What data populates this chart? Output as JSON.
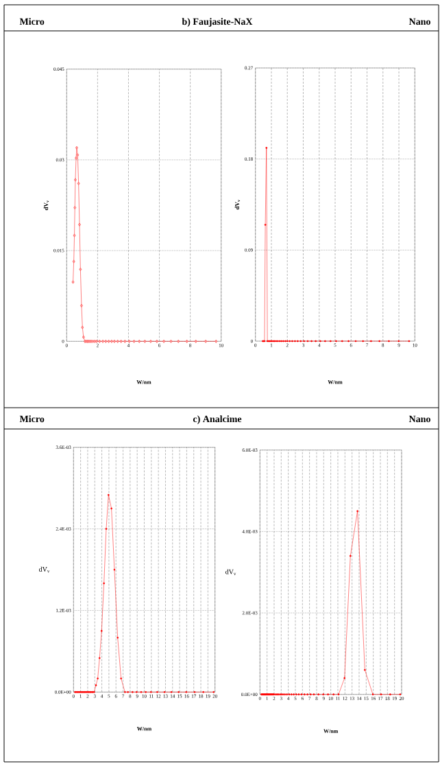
{
  "chart_data": [
    {
      "type": "line",
      "title": "Micro",
      "subtitle": "b) Faujasite-NaX",
      "xlabel": "W/nm",
      "ylabel": "dV$_{v}$",
      "color": "#ff0000",
      "marker": "diamond",
      "line_style": "solid",
      "grid": true,
      "xlim": [
        0,
        10
      ],
      "xticks": [
        0,
        2,
        4,
        6,
        8,
        10
      ],
      "ylim": [
        0,
        0.045
      ],
      "yticks": [
        0,
        0.015,
        0.03,
        0.045
      ],
      "x": [
        0.41,
        0.46,
        0.5,
        0.53,
        0.56,
        0.61,
        0.65,
        0.71,
        0.77,
        0.83,
        0.89,
        0.96,
        1.02,
        1.09,
        1.18,
        1.26,
        1.34,
        1.41,
        1.5,
        1.59,
        1.7,
        1.82,
        1.94,
        2.13,
        2.34,
        2.53,
        2.72,
        2.91,
        3.09,
        3.3,
        3.52,
        3.77,
        4.05,
        4.36,
        4.7,
        5.06,
        5.44,
        5.84,
        6.29,
        6.75,
        7.23,
        7.78,
        8.36,
        9.0,
        9.67
      ],
      "values": [
        0.0098,
        0.0132,
        0.0175,
        0.0221,
        0.0267,
        0.0303,
        0.032,
        0.0308,
        0.0261,
        0.0193,
        0.0119,
        0.0059,
        0.0023,
        0.0007,
        0,
        0,
        0,
        0,
        0,
        0,
        0,
        0,
        0,
        0,
        0,
        0,
        0,
        0,
        0,
        0,
        0,
        0,
        0,
        0,
        0,
        0,
        0,
        0,
        0,
        0,
        0,
        0,
        0,
        0,
        0
      ]
    },
    {
      "type": "line",
      "title": "Nano",
      "xlabel": "W/nm",
      "ylabel": "dV$_{v}$",
      "color": "#ff0000",
      "marker": "circle",
      "line_style": "solid",
      "grid": true,
      "xlim": [
        0,
        10
      ],
      "xticks": [
        0,
        1,
        2,
        3,
        4,
        5,
        6,
        7,
        8,
        9,
        10
      ],
      "ylim": [
        0,
        0.27
      ],
      "yticks": [
        0,
        0.09,
        0.18,
        0.27
      ],
      "x": [
        0.46,
        0.52,
        0.57,
        0.62,
        0.69,
        0.75,
        0.82,
        0.89,
        0.96,
        1.03,
        1.12,
        1.2,
        1.3,
        1.4,
        1.52,
        1.63,
        1.75,
        1.88,
        2.0,
        2.15,
        2.31,
        2.48,
        2.65,
        2.84,
        3.05,
        3.28,
        3.52,
        3.78,
        4.07,
        4.37,
        4.71,
        5.06,
        5.44,
        5.84,
        6.29,
        6.75,
        7.25,
        7.78,
        8.37,
        8.99,
        9.64
      ],
      "values": [
        0,
        0,
        0,
        0.115,
        0.191,
        0,
        0,
        0,
        0,
        0,
        0,
        0,
        0,
        0,
        0,
        0,
        0,
        0,
        0,
        0,
        0,
        0,
        0,
        0,
        0,
        0,
        0,
        0,
        0,
        0,
        0,
        0,
        0,
        0,
        0,
        0,
        0,
        0,
        0,
        0,
        0
      ]
    },
    {
      "type": "line",
      "title": "Micro",
      "subtitle": "c) Analcime",
      "xlabel": "W/nm",
      "ylabel": "dV$_{v}$",
      "color": "#ff0000",
      "marker": "circle",
      "line_style": "solid",
      "grid": true,
      "xlim": [
        0,
        20
      ],
      "xticks": [
        0,
        1,
        2,
        3,
        4,
        5,
        6,
        7,
        8,
        9,
        10,
        11,
        12,
        13,
        14,
        15,
        16,
        17,
        18,
        19,
        20
      ],
      "ylim": [
        0,
        0.0036
      ],
      "yticks": [
        {
          "value": 0,
          "label": "0.0E+00"
        },
        {
          "value": 0.0012,
          "label": "1.2E-03"
        },
        {
          "value": 0.0024,
          "label": "2.4E-03"
        },
        {
          "value": 0.0036,
          "label": "3.6E-03"
        }
      ],
      "x": [
        0.2,
        0.35,
        0.5,
        0.65,
        0.8,
        0.95,
        1.1,
        1.25,
        1.4,
        1.55,
        1.7,
        1.85,
        2.0,
        2.15,
        2.3,
        2.45,
        2.6,
        2.75,
        2.91,
        3.17,
        3.42,
        3.68,
        3.97,
        4.3,
        4.62,
        4.94,
        5.36,
        5.78,
        6.24,
        6.72,
        7.27,
        7.69,
        8.34,
        8.92,
        9.56,
        10.21,
        10.95,
        11.83,
        12.86,
        13.83,
        14.86,
        15.93,
        17.12,
        18.35,
        19.81
      ],
      "values": [
        0,
        0,
        0,
        0,
        0,
        0,
        0,
        0,
        0,
        0,
        0,
        0,
        0,
        0,
        0,
        0,
        0,
        0,
        0,
        0.0001,
        0.0002,
        0.0005,
        0.0009,
        0.0016,
        0.0024,
        0.0029,
        0.0027,
        0.0018,
        0.0008,
        0.0002,
        0,
        0,
        0,
        0,
        0,
        0,
        0,
        0,
        0,
        0,
        0,
        0,
        0,
        0,
        0
      ]
    },
    {
      "type": "line",
      "title": "Nano",
      "xlabel": "W/nm",
      "ylabel": "dV$_{v}$",
      "color": "#ff0000",
      "marker": "circle",
      "line_style": "solid",
      "grid": true,
      "xlim": [
        0,
        20
      ],
      "xticks": [
        0,
        1,
        2,
        3,
        4,
        5,
        6,
        7,
        8,
        9,
        10,
        11,
        12,
        13,
        14,
        15,
        16,
        17,
        18,
        19,
        20
      ],
      "ylim": [
        0,
        0.006
      ],
      "yticks": [
        {
          "value": 0,
          "label": "0.0E+00"
        },
        {
          "value": 0.002,
          "label": "2.0E-03"
        },
        {
          "value": 0.004,
          "label": "4.0E-03"
        },
        {
          "value": 0.006,
          "label": "6.0E-03"
        }
      ],
      "x": [
        0.2,
        0.3,
        0.4,
        0.5,
        0.6,
        0.7,
        0.8,
        0.9,
        1.0,
        1.1,
        1.2,
        1.3,
        1.4,
        1.5,
        1.6,
        1.7,
        1.8,
        1.9,
        2.0,
        2.23,
        2.42,
        2.61,
        2.84,
        3.03,
        3.26,
        3.52,
        3.81,
        4.13,
        4.45,
        4.77,
        5.13,
        5.48,
        5.87,
        6.29,
        6.71,
        7.16,
        7.61,
        8.26,
        8.94,
        9.61,
        10.39,
        11.1,
        11.94,
        12.77,
        13.77,
        14.81,
        15.94,
        17.1,
        18.39,
        19.8
      ],
      "values": [
        0,
        0,
        0,
        0,
        0,
        0,
        0,
        0,
        0,
        0,
        0,
        0,
        0,
        0,
        0,
        0,
        0,
        0,
        0,
        0,
        0,
        0,
        0,
        0,
        0,
        0,
        0,
        0,
        0,
        0,
        0,
        0,
        0,
        0,
        0,
        0,
        0,
        0,
        0,
        0,
        0,
        0,
        0.0004,
        0.0034,
        0.0045,
        0.0006,
        0,
        0,
        0,
        0
      ]
    }
  ]
}
